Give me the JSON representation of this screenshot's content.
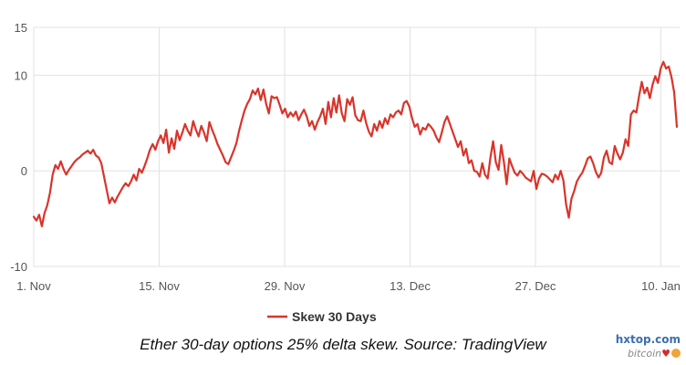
{
  "chart_data": {
    "type": "line",
    "title": "",
    "xlabel": "",
    "ylabel": "",
    "ylim": [
      -10,
      15
    ],
    "yticks": [
      "15",
      "10",
      "0",
      "-10"
    ],
    "xticks": [
      "1. Nov",
      "15. Nov",
      "29. Nov",
      "13. Dec",
      "27. Dec",
      "10. Jan"
    ],
    "grid": true,
    "legend_position": "bottom-center",
    "series": [
      {
        "name": "Skew 30 Days",
        "color": "#d9342b",
        "values": [
          -4.8,
          -5.2,
          -4.6,
          -5.8,
          -4.4,
          -3.6,
          -2.3,
          -0.4,
          0.6,
          0.2,
          1.0,
          0.2,
          -0.4,
          0.1,
          0.5,
          0.9,
          1.2,
          1.4,
          1.7,
          1.9,
          2.1,
          1.8,
          2.2,
          1.6,
          1.4,
          0.8,
          -0.6,
          -2.0,
          -3.4,
          -2.8,
          -3.3,
          -2.7,
          -2.2,
          -1.7,
          -1.3,
          -1.6,
          -1.1,
          -0.4,
          -1.0,
          0.2,
          -0.2,
          0.5,
          1.3,
          2.2,
          2.8,
          2.2,
          3.1,
          3.7,
          2.9,
          4.3,
          1.9,
          3.4,
          2.3,
          4.2,
          3.2,
          4.0,
          4.9,
          4.2,
          3.7,
          5.2,
          4.3,
          3.6,
          4.7,
          4.0,
          3.1,
          5.1,
          4.3,
          3.6,
          2.8,
          2.2,
          1.6,
          0.9,
          0.7,
          1.4,
          2.1,
          2.9,
          4.2,
          5.3,
          6.3,
          7.0,
          7.5,
          8.4,
          8.0,
          8.6,
          7.4,
          8.5,
          7.0,
          6.0,
          7.8,
          7.6,
          7.7,
          6.9,
          6.0,
          6.5,
          5.6,
          6.1,
          5.7,
          6.2,
          5.3,
          5.9,
          6.4,
          5.7,
          4.7,
          5.2,
          4.3,
          5.1,
          5.7,
          6.5,
          4.9,
          7.2,
          5.6,
          7.6,
          6.1,
          7.9,
          6.0,
          5.2,
          7.5,
          6.9,
          7.7,
          5.8,
          5.3,
          5.2,
          6.3,
          5.0,
          4.1,
          3.6,
          4.9,
          4.2,
          5.2,
          4.5,
          5.5,
          4.9,
          5.9,
          5.6,
          6.1,
          6.3,
          5.9,
          7.1,
          7.3,
          6.7,
          5.5,
          4.6,
          4.9,
          3.8,
          4.5,
          4.3,
          4.9,
          4.6,
          4.2,
          3.5,
          3.0,
          4.0,
          5.1,
          5.7,
          4.9,
          4.1,
          3.3,
          2.5,
          3.1,
          1.6,
          2.3,
          0.8,
          1.1,
          0.0,
          -0.1,
          -0.6,
          0.8,
          -0.4,
          -0.8,
          1.4,
          3.1,
          0.9,
          0.1,
          2.7,
          0.9,
          -1.4,
          1.3,
          0.5,
          -0.2,
          -0.5,
          0.0,
          -0.3,
          -0.7,
          -0.9,
          -1.1,
          0.0,
          -1.9,
          -0.8,
          -0.3,
          -0.4,
          -0.6,
          -0.9,
          -1.2,
          -0.4,
          -0.9,
          0.0,
          -1.0,
          -3.5,
          -4.9,
          -2.9,
          -2.1,
          -1.1,
          -0.6,
          -0.2,
          0.5,
          1.3,
          1.5,
          0.8,
          -0.1,
          -0.7,
          -0.2,
          1.4,
          2.1,
          0.9,
          0.7,
          2.6,
          1.8,
          1.2,
          1.9,
          3.3,
          2.6,
          5.9,
          6.3,
          6.1,
          7.8,
          9.3,
          8.1,
          8.7,
          7.6,
          9.0,
          9.9,
          9.2,
          10.7,
          11.4,
          10.7,
          10.9,
          9.8,
          8.2,
          4.6
        ]
      }
    ]
  },
  "caption": "Ether 30-day options 25% delta skew. Source: TradingView",
  "watermark": {
    "site": "hxtop.com",
    "brand": "bitcoin"
  }
}
